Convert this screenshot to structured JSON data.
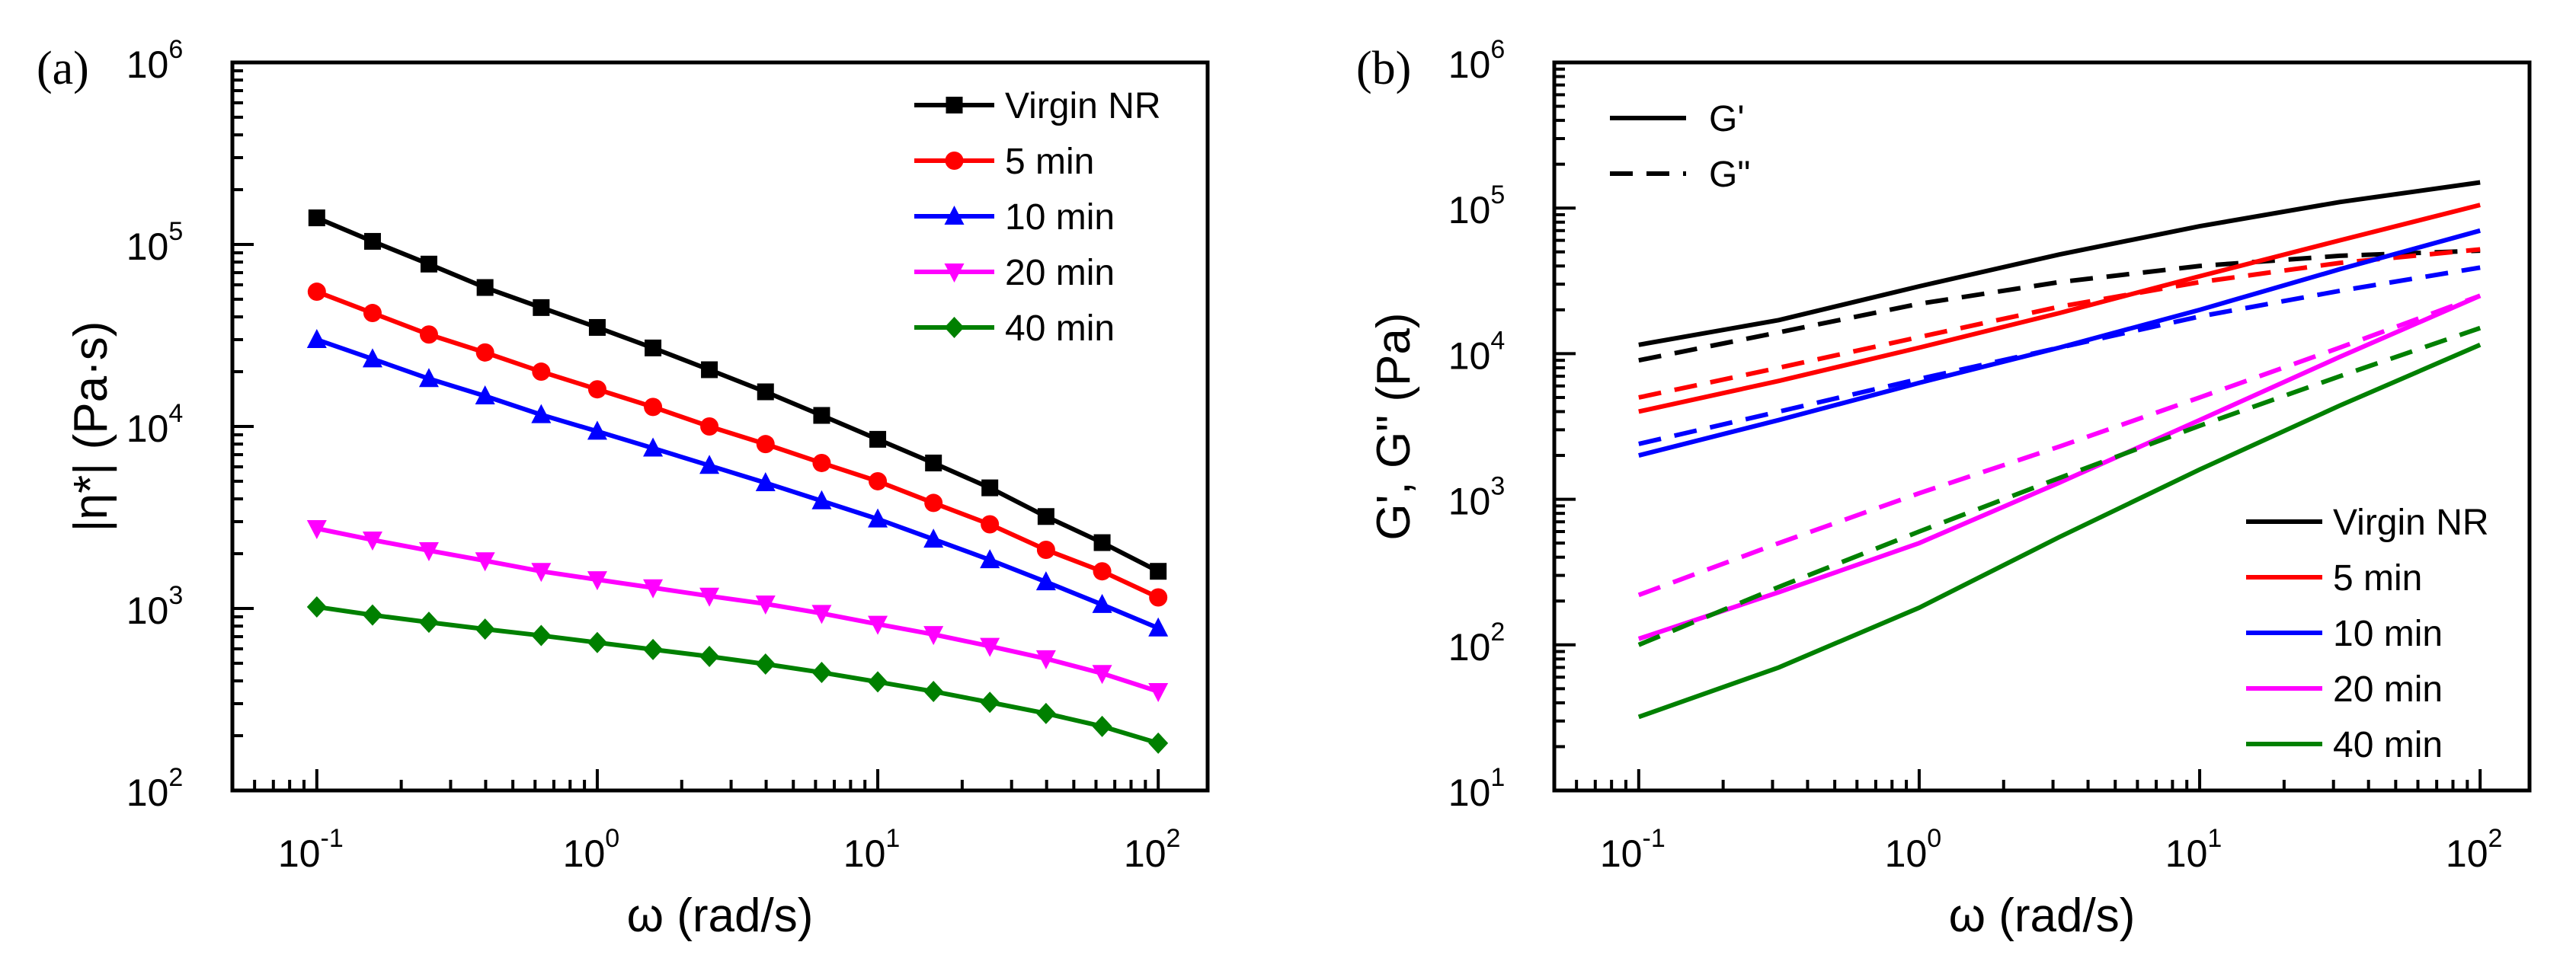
{
  "chart_data": [
    {
      "type": "line",
      "panel_label": "(a)",
      "xlabel": "ω (rad/s)",
      "ylabel": "|η*| (Pa·s)",
      "x_scale": "log",
      "y_scale": "log",
      "xlim": [
        0.05,
        150
      ],
      "ylim": [
        100,
        1000000
      ],
      "x_ticks": [
        {
          "value": 0.1,
          "base": "10",
          "exp": "-1"
        },
        {
          "value": 1,
          "base": "10",
          "exp": "0"
        },
        {
          "value": 10,
          "base": "10",
          "exp": "1"
        },
        {
          "value": 100,
          "base": "10",
          "exp": "2"
        }
      ],
      "y_ticks": [
        {
          "value": 100,
          "base": "10",
          "exp": "2"
        },
        {
          "value": 1000,
          "base": "10",
          "exp": "3"
        },
        {
          "value": 10000,
          "base": "10",
          "exp": "4"
        },
        {
          "value": 100000,
          "base": "10",
          "exp": "5"
        },
        {
          "value": 1000000,
          "base": "10",
          "exp": "6"
        }
      ],
      "legend_position": "top-right",
      "x": [
        0.1,
        0.158,
        0.251,
        0.398,
        0.631,
        1,
        1.58,
        2.51,
        3.98,
        6.31,
        10,
        15.8,
        25.1,
        39.8,
        63.1,
        100
      ],
      "series": [
        {
          "name": "Virgin NR",
          "color": "#000000",
          "marker": "square",
          "values": [
            140000,
            104000,
            78000,
            58000,
            45000,
            35000,
            27000,
            20500,
            15500,
            11500,
            8500,
            6300,
            4600,
            3200,
            2300,
            1600
          ]
        },
        {
          "name": "5 min",
          "color": "#ff0000",
          "marker": "circle",
          "values": [
            55000,
            42000,
            32000,
            25500,
            20000,
            16000,
            12800,
            10000,
            8000,
            6300,
            5000,
            3800,
            2900,
            2100,
            1600,
            1150
          ]
        },
        {
          "name": "10 min",
          "color": "#0000ff",
          "marker": "triangle-up",
          "values": [
            30000,
            23500,
            18300,
            14700,
            11600,
            9400,
            7600,
            6100,
            4900,
            3900,
            3100,
            2400,
            1850,
            1400,
            1050,
            780
          ]
        },
        {
          "name": "20 min",
          "color": "#ff00ff",
          "marker": "triangle-down",
          "values": [
            2750,
            2380,
            2080,
            1830,
            1600,
            1440,
            1300,
            1170,
            1060,
            940,
            820,
            720,
            620,
            530,
            440,
            350
          ]
        },
        {
          "name": "40 min",
          "color": "#008000",
          "marker": "diamond",
          "values": [
            1020,
            920,
            840,
            770,
            710,
            650,
            595,
            545,
            495,
            445,
            395,
            350,
            305,
            265,
            225,
            182
          ]
        }
      ]
    },
    {
      "type": "line",
      "panel_label": "(b)",
      "xlabel": "ω (rad/s)",
      "ylabel": "G', G\" (Pa)",
      "x_scale": "log",
      "y_scale": "log",
      "xlim": [
        0.05,
        150
      ],
      "ylim": [
        10,
        1000000
      ],
      "x_ticks": [
        {
          "value": 0.1,
          "base": "10",
          "exp": "-1"
        },
        {
          "value": 1,
          "base": "10",
          "exp": "0"
        },
        {
          "value": 10,
          "base": "10",
          "exp": "1"
        },
        {
          "value": 100,
          "base": "10",
          "exp": "2"
        }
      ],
      "y_ticks": [
        {
          "value": 10,
          "base": "10",
          "exp": "1"
        },
        {
          "value": 100,
          "base": "10",
          "exp": "2"
        },
        {
          "value": 1000,
          "base": "10",
          "exp": "3"
        },
        {
          "value": 10000,
          "base": "10",
          "exp": "4"
        },
        {
          "value": 100000,
          "base": "10",
          "exp": "5"
        },
        {
          "value": 1000000,
          "base": "10",
          "exp": "6"
        }
      ],
      "style_legend": [
        {
          "name": "G'",
          "dash": "solid"
        },
        {
          "name": "G\"",
          "dash": "dashed"
        }
      ],
      "legend_position": "bottom-right",
      "x": [
        0.1,
        0.316,
        1,
        3.16,
        10,
        31.6,
        100
      ],
      "series": [
        {
          "name": "Virgin NR",
          "color": "#000000",
          "g_prime": [
            11500,
            17000,
            29000,
            48000,
            75000,
            110000,
            150000
          ],
          "g_double_prime": [
            9000,
            14000,
            22000,
            31000,
            40000,
            47000,
            51000
          ]
        },
        {
          "name": "5 min",
          "color": "#ff0000",
          "g_prime": [
            4000,
            6500,
            11000,
            19000,
            34000,
            60000,
            105000
          ],
          "g_double_prime": [
            5000,
            8000,
            13000,
            21000,
            31000,
            42000,
            52000
          ]
        },
        {
          "name": "10 min",
          "color": "#0000ff",
          "g_prime": [
            2000,
            3500,
            6300,
            11000,
            20000,
            38000,
            70000
          ],
          "g_double_prime": [
            2400,
            4000,
            6700,
            11000,
            18000,
            27000,
            39000
          ]
        },
        {
          "name": "20 min",
          "color": "#ff00ff",
          "g_prime": [
            110,
            230,
            500,
            1300,
            3500,
            9500,
            25000
          ],
          "g_double_prime": [
            220,
            500,
            1100,
            2300,
            5000,
            11000,
            25000
          ]
        },
        {
          "name": "40 min",
          "color": "#008000",
          "g_prime": [
            32,
            70,
            180,
            550,
            1600,
            4400,
            11500
          ],
          "g_double_prime": [
            100,
            250,
            600,
            1400,
            3200,
            7000,
            15000
          ]
        }
      ]
    }
  ]
}
